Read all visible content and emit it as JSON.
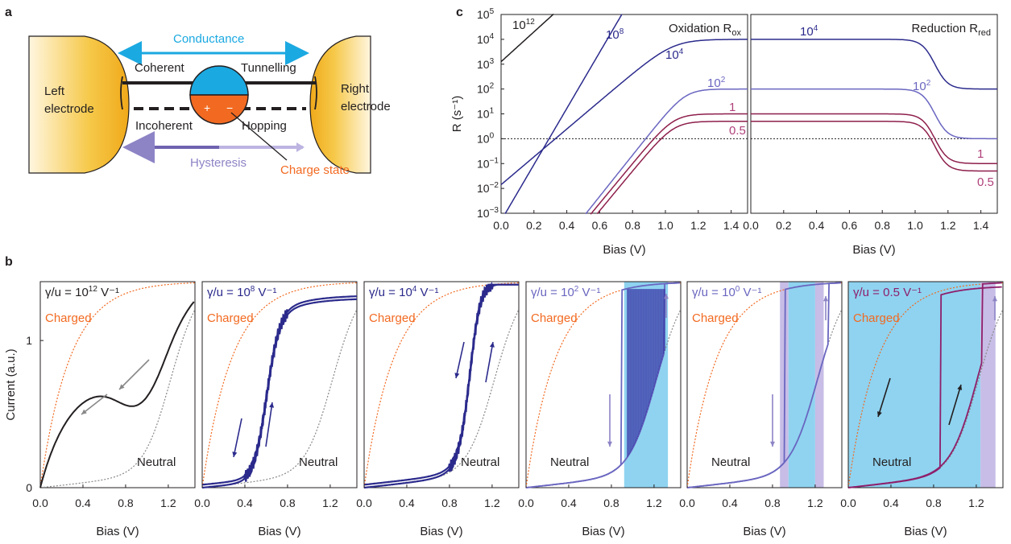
{
  "panel_labels": {
    "a": "a",
    "b": "b",
    "c": "c"
  },
  "schematic": {
    "conductance": "Conductance",
    "coherent": "Coherent",
    "tunnelling": "Tunnelling",
    "incoherent": "Incoherent",
    "hopping": "Hopping",
    "hysteresis": "Hysteresis",
    "charge_state": "Charge state",
    "left_electrode_l1": "Left",
    "left_electrode_l2": "electrode",
    "right_electrode_l1": "Right",
    "right_electrode_l2": "electrode",
    "plus": "+",
    "minus": "−",
    "colors": {
      "electrode": "#f2b21b",
      "conductance": "#1ba9e1",
      "hysteresis": "#8d84c6",
      "charge": "#f26a21",
      "blue_dot": "#1ba9e1"
    }
  },
  "chart_data": [
    {
      "id": "b1",
      "type": "line",
      "title_prefix": "γ/u = ",
      "title_base": "10",
      "title_exp": "12",
      "title_unit": " V⁻¹",
      "xlabel": "Bias (V)",
      "ylabel": "Current (a.u.)",
      "xlim": [
        0,
        1.45
      ],
      "ylim": [
        0,
        1.4
      ],
      "xticks": [
        "0.0",
        "0.4",
        "0.8",
        "1.2"
      ],
      "yticks": [
        "0",
        "1"
      ],
      "charged_label": "Charged",
      "neutral_label": "Neutral",
      "series_color": "#231f20"
    },
    {
      "id": "b2",
      "type": "line",
      "title_prefix": "γ/u = ",
      "title_base": "10",
      "title_exp": "8",
      "title_unit": " V⁻¹",
      "xlabel": "Bias (V)",
      "xlim": [
        0,
        1.45
      ],
      "ylim": [
        0,
        1.4
      ],
      "xticks": [
        "0.0",
        "0.4",
        "0.8",
        "1.2"
      ],
      "charged_label": "Charged",
      "neutral_label": "Neutral",
      "series_color": "#2b2a8c"
    },
    {
      "id": "b3",
      "type": "line",
      "title_prefix": "γ/u = ",
      "title_base": "10",
      "title_exp": "4",
      "title_unit": " V⁻¹",
      "xlabel": "Bias (V)",
      "xlim": [
        0,
        1.45
      ],
      "ylim": [
        0,
        1.4
      ],
      "xticks": [
        "0.0",
        "0.4",
        "0.8",
        "1.2"
      ],
      "charged_label": "Charged",
      "neutral_label": "Neutral",
      "series_color": "#2b2a8c"
    },
    {
      "id": "b4",
      "type": "line",
      "title_prefix": "γ/u = ",
      "title_base": "10",
      "title_exp": "2",
      "title_unit": " V⁻¹",
      "xlabel": "Bias (V)",
      "xlim": [
        0,
        1.45
      ],
      "ylim": [
        0,
        1.4
      ],
      "xticks": [
        "0.0",
        "0.4",
        "0.8",
        "1.2"
      ],
      "charged_label": "Charged",
      "neutral_label": "Neutral",
      "series_color": "#6a66c0"
    },
    {
      "id": "b5",
      "type": "line",
      "title_prefix": "γ/u = ",
      "title_base": "10",
      "title_exp": "0",
      "title_unit": " V⁻¹",
      "xlabel": "Bias (V)",
      "xlim": [
        0,
        1.45
      ],
      "ylim": [
        0,
        1.4
      ],
      "xticks": [
        "0.0",
        "0.4",
        "0.8",
        "1.2"
      ],
      "charged_label": "Charged",
      "neutral_label": "Neutral",
      "series_color": "#6a66c0"
    },
    {
      "id": "b6",
      "type": "line",
      "title_prefix": "γ/u = 0.5 V⁻¹",
      "title_base": "",
      "title_exp": "",
      "title_unit": "",
      "xlabel": "Bias (V)",
      "xlim": [
        0,
        1.45
      ],
      "ylim": [
        0,
        1.4
      ],
      "xticks": [
        "0.0",
        "0.4",
        "0.8",
        "1.2"
      ],
      "charged_label": "Charged",
      "neutral_label": "Neutral",
      "series_color": "#8e1f6b"
    },
    {
      "id": "c1",
      "type": "line",
      "title": "Oxidation R",
      "title_sub": "ox",
      "xlabel": "Bias (V)",
      "ylabel": "R (s⁻¹)",
      "xlim": [
        0,
        1.5
      ],
      "ylog": true,
      "ylim_exp": [
        -3,
        5
      ],
      "xticks": [
        "0.0",
        "0.2",
        "0.4",
        "0.6",
        "0.8",
        "1.0",
        "1.2",
        "1.4"
      ],
      "ytick_exps": [
        "-3",
        "-2",
        "-1",
        "0",
        "1",
        "2",
        "3",
        "4",
        "5"
      ],
      "ytick_base": "10",
      "curve_labels": [
        {
          "base": "10",
          "exp": "12"
        },
        {
          "base": "10",
          "exp": "8"
        },
        {
          "base": "10",
          "exp": "4"
        },
        {
          "base": "10",
          "exp": "2"
        },
        {
          "base": "1",
          "exp": ""
        },
        {
          "base": "0.5",
          "exp": ""
        }
      ],
      "series": [
        {
          "name": "10^12",
          "color": "#231f20"
        },
        {
          "name": "10^8",
          "color": "#2b2a8c"
        },
        {
          "name": "10^4",
          "color": "#2b2a8c"
        },
        {
          "name": "10^2",
          "color": "#6a66c0"
        },
        {
          "name": "1",
          "color": "#8e1f4b"
        },
        {
          "name": "0.5",
          "color": "#8e1f4b"
        }
      ],
      "threshold": 1
    },
    {
      "id": "c2",
      "type": "line",
      "title": "Reduction R",
      "title_sub": "red",
      "xlabel": "Bias (V)",
      "xlim": [
        0,
        1.5
      ],
      "ylog": true,
      "ylim_exp": [
        -3,
        5
      ],
      "xticks": [
        "0.0",
        "0.2",
        "0.4",
        "0.6",
        "0.8",
        "1.0",
        "1.2",
        "1.4"
      ],
      "curve_labels": [
        {
          "base": "10",
          "exp": "4"
        },
        {
          "base": "10",
          "exp": "2"
        },
        {
          "base": "1",
          "exp": ""
        },
        {
          "base": "0.5",
          "exp": ""
        }
      ],
      "series": [
        {
          "name": "10^4",
          "plateau": 10000,
          "final": 100
        },
        {
          "name": "10^2",
          "plateau": 100,
          "final": 1
        },
        {
          "name": "1",
          "plateau": 10,
          "final": 0.1
        },
        {
          "name": "0.5",
          "plateau": 5,
          "final": 0.05
        }
      ],
      "threshold": 1
    }
  ]
}
